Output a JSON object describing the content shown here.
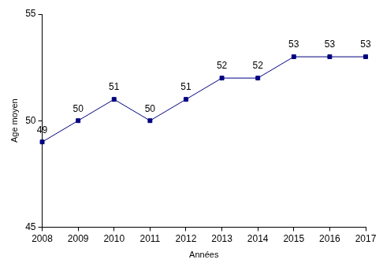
{
  "chart_data": {
    "type": "line",
    "x_label": "Années",
    "y_label": "Age moyen",
    "categories": [
      "2008",
      "2009",
      "2010",
      "2011",
      "2012",
      "2013",
      "2014",
      "2015",
      "2016",
      "2017"
    ],
    "values": [
      49,
      50,
      51,
      50,
      51,
      52,
      52,
      53,
      53,
      53
    ],
    "color": "#000080",
    "marker": "square",
    "line_style": "solid",
    "ylim": [
      45,
      55
    ],
    "yticks": [
      45,
      50,
      55
    ],
    "grid": false,
    "data_labels": true
  }
}
